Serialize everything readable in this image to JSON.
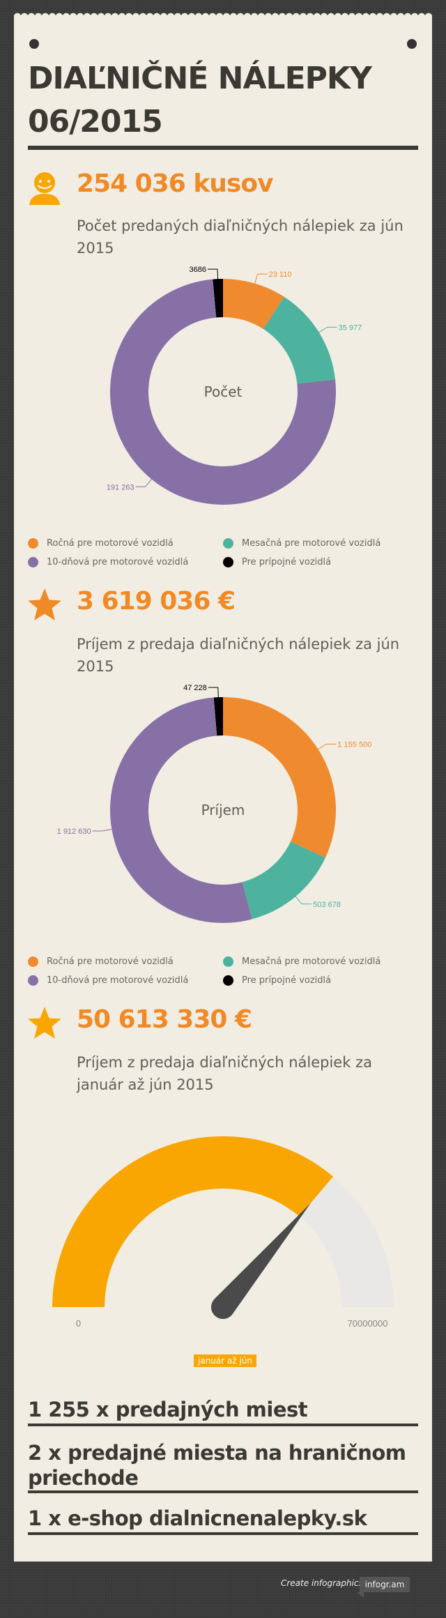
{
  "title_line1": "DIAĽNIČNÉ NÁLEPKY",
  "title_line2": "06/2015",
  "section1": {
    "headline": "254 036 kusov",
    "subtitle": "Počet predaných diaľničných nálepiek za jún 2015",
    "icon": "person-icon"
  },
  "section2": {
    "headline": "3 619 036 €",
    "subtitle": "Príjem z predaja diaľničných nálepiek za jún 2015",
    "icon": "star-icon"
  },
  "section3": {
    "headline": "50 613 330 €",
    "subtitle": "Príjem z predaja diaľničných nálepiek za január až jún 2015",
    "icon": "star-icon"
  },
  "legend": [
    {
      "label": "Ročná pre motorové vozidlá",
      "color": "#f08a2f"
    },
    {
      "label": "Mesačná pre motorové vozidlá",
      "color": "#4db39f"
    },
    {
      "label": "10-dňová pre motorové vozidlá",
      "color": "#8670a5"
    },
    {
      "label": "Pre prípojné vozidlá",
      "color": "#000000"
    }
  ],
  "chart_data": [
    {
      "type": "pie",
      "variant": "donut",
      "center_label": "Počet",
      "categories": [
        "Ročná pre motorové vozidlá",
        "Mesačná pre motorové vozidlá",
        "10-dňová pre motorové vozidlá",
        "Pre prípojné vozidlá"
      ],
      "values": [
        23110,
        35977,
        191263,
        3686
      ],
      "value_labels": [
        "23 110",
        "35 977",
        "191 263",
        "3686"
      ],
      "colors": [
        "#f08a2f",
        "#4db39f",
        "#8670a5",
        "#000000"
      ],
      "legend_position": "bottom"
    },
    {
      "type": "pie",
      "variant": "donut",
      "center_label": "Príjem",
      "categories": [
        "Ročná pre motorové vozidlá",
        "Mesačná pre motorové vozidlá",
        "10-dňová pre motorové vozidlá",
        "Pre prípojné vozidlá"
      ],
      "values": [
        1155500,
        503678,
        1912630,
        47228
      ],
      "value_labels": [
        "1 155 500",
        "503 678",
        "1 912 630",
        "47 228"
      ],
      "colors": [
        "#f08a2f",
        "#4db39f",
        "#8670a5",
        "#000000"
      ],
      "legend_position": "bottom"
    },
    {
      "type": "gauge",
      "value": 50613330,
      "min": 0,
      "max": 70000000,
      "min_label": "0",
      "max_label": "70000000",
      "series_label": "január až jún",
      "fill_color": "#f9a602",
      "track_color": "#e9e8e6",
      "needle_color": "#4a4a4a"
    }
  ],
  "stats": [
    "1 255 x predajných miest",
    "2 x predajné miesta na hraničnom priechode",
    "1 x e-shop dialnicnenalepky.sk"
  ],
  "footer": {
    "credit": "Create infographics",
    "brand": "infogr.am"
  }
}
